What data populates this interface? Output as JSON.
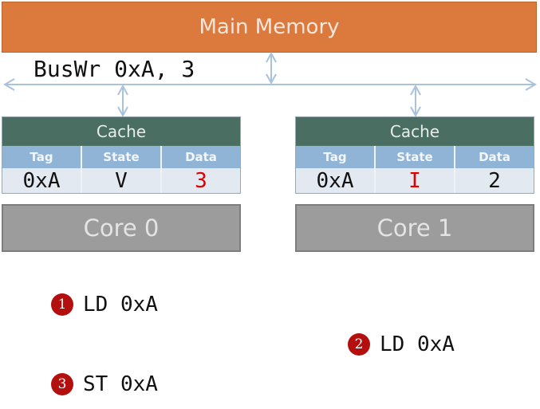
{
  "memory": {
    "label": "Main Memory"
  },
  "bus": {
    "label": "BusWr 0xA, 3"
  },
  "caches": [
    {
      "title": "Cache",
      "headers": [
        "Tag",
        "State",
        "Data"
      ],
      "row": {
        "tag": "0xA",
        "state": "V",
        "data": "3"
      },
      "highlight": "data"
    },
    {
      "title": "Cache",
      "headers": [
        "Tag",
        "State",
        "Data"
      ],
      "row": {
        "tag": "0xA",
        "state": "I",
        "data": "2"
      },
      "highlight": "state"
    }
  ],
  "cores": [
    "Core 0",
    "Core 1"
  ],
  "steps": [
    {
      "num": "1",
      "text": "LD 0xA",
      "core": "Core 0"
    },
    {
      "num": "2",
      "text": "LD 0xA",
      "core": "Core 1"
    },
    {
      "num": "3",
      "text": "ST 0xA",
      "core": "Core 0"
    }
  ],
  "colors": {
    "memory": "#dc7a3e",
    "cache_header": "#4b6e63",
    "table_header": "#8fb4d6",
    "core": "#9c9c9c",
    "highlight": "#e00000",
    "badge": "#b30f0f",
    "bus": "#a9c3dc"
  }
}
